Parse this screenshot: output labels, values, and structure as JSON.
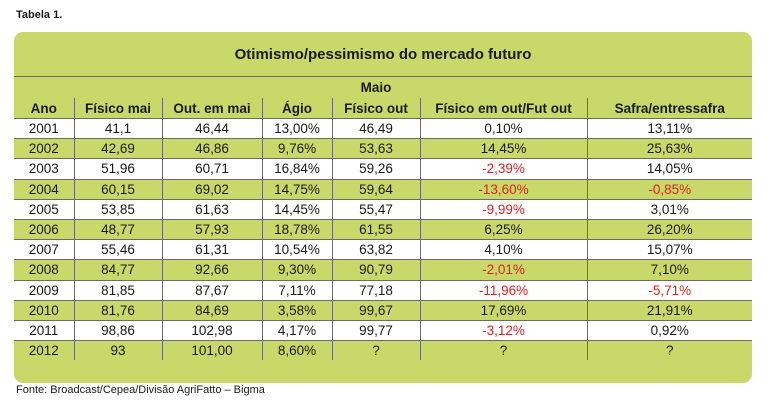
{
  "caption": "Tabela 1.",
  "table_title": "Otimismo/pessimismo do mercado futuro",
  "group_header": "Maio",
  "columns": [
    "Ano",
    "Físico mai",
    "Out. em mai",
    "Ágio",
    "Físico out",
    "Físico em out/Fut out",
    "Safra/entressafra"
  ],
  "rows": [
    {
      "cells": [
        "2001",
        "41,1",
        "46,44",
        "13,00%",
        "46,49",
        "0,10%",
        "13,11%"
      ],
      "neg": [
        false,
        false
      ]
    },
    {
      "cells": [
        "2002",
        "42,69",
        "46,86",
        "9,76%",
        "53,63",
        "14,45%",
        "25,63%"
      ],
      "neg": [
        false,
        false
      ]
    },
    {
      "cells": [
        "2003",
        "51,96",
        "60,71",
        "16,84%",
        "59,26",
        "-2,39%",
        "14,05%"
      ],
      "neg": [
        true,
        false
      ]
    },
    {
      "cells": [
        "2004",
        "60,15",
        "69,02",
        "14,75%",
        "59,64",
        "-13,60%",
        "-0,85%"
      ],
      "neg": [
        true,
        true
      ]
    },
    {
      "cells": [
        "2005",
        "53,85",
        "61,63",
        "14,45%",
        "55,47",
        "-9,99%",
        "3,01%"
      ],
      "neg": [
        true,
        false
      ]
    },
    {
      "cells": [
        "2006",
        "48,77",
        "57,93",
        "18,78%",
        "61,55",
        "6,25%",
        "26,20%"
      ],
      "neg": [
        false,
        false
      ]
    },
    {
      "cells": [
        "2007",
        "55,46",
        "61,31",
        "10,54%",
        "63,82",
        "4,10%",
        "15,07%"
      ],
      "neg": [
        false,
        false
      ]
    },
    {
      "cells": [
        "2008",
        "84,77",
        "92,66",
        "9,30%",
        "90,79",
        "-2,01%",
        "7,10%"
      ],
      "neg": [
        true,
        false
      ]
    },
    {
      "cells": [
        "2009",
        "81,85",
        "87,67",
        "7,11%",
        "77,18",
        "-11,96%",
        "-5,71%"
      ],
      "neg": [
        true,
        true
      ]
    },
    {
      "cells": [
        "2010",
        "81,76",
        "84,69",
        "3,58%",
        "99,67",
        "17,69%",
        "21,91%"
      ],
      "neg": [
        false,
        false
      ]
    },
    {
      "cells": [
        "2011",
        "98,86",
        "102,98",
        "4,17%",
        "99,77",
        "-3,12%",
        "0,92%"
      ],
      "neg": [
        true,
        false
      ]
    },
    {
      "cells": [
        "2012",
        "93",
        "101,00",
        "8,60%",
        "?",
        "?",
        "?"
      ],
      "neg": [
        false,
        false
      ]
    }
  ],
  "footer": "Fonte: Broadcast/Cepea/Divisão AgriFatto – Bigma",
  "colors": {
    "band": "#c8d96a",
    "negative": "#e02020",
    "rule": "#6b6b6b"
  }
}
